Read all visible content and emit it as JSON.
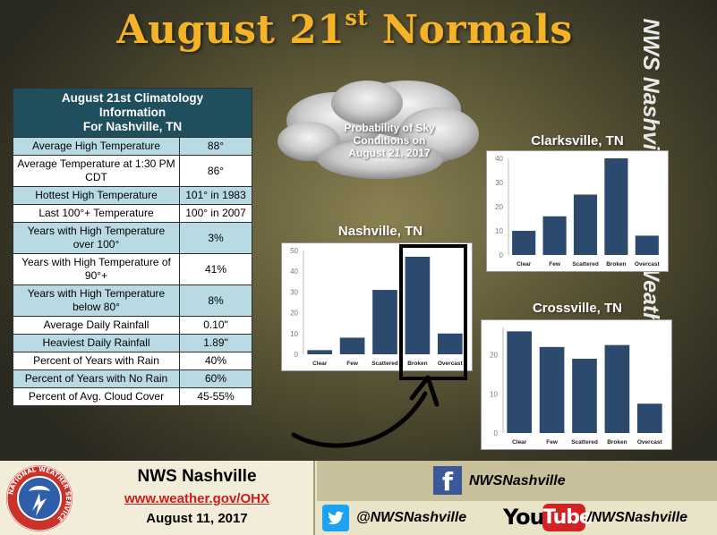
{
  "header": {
    "title_main": "August 21",
    "title_sup": "st",
    "title_tail": " Normals",
    "side_banner": "NWS Nashville Impact Weather Briefing"
  },
  "table": {
    "header_lines": [
      "August 21st Climatology",
      "Information",
      "For Nashville, TN"
    ],
    "rows": [
      {
        "label": "Average High Temperature",
        "value": "88°"
      },
      {
        "label": "Average Temperature at 1:30 PM CDT",
        "value": "86°"
      },
      {
        "label": "Hottest High Temperature",
        "value": "101° in 1983"
      },
      {
        "label": "Last 100°+ Temperature",
        "value": "100° in 2007"
      },
      {
        "label": "Years with High Temperature over 100°",
        "value": "3%"
      },
      {
        "label": "Years with High Temperature of 90°+",
        "value": "41%"
      },
      {
        "label": "Years with High Temperature below 80°",
        "value": "8%"
      },
      {
        "label": "Average Daily Rainfall",
        "value": "0.10\""
      },
      {
        "label": "Heaviest Daily Rainfall",
        "value": "1.89\""
      },
      {
        "label": "Percent of Years with Rain",
        "value": "40%"
      },
      {
        "label": "Percent of Years with No Rain",
        "value": "60%"
      },
      {
        "label": "Percent of Avg. Cloud Cover",
        "value": "45-55%"
      }
    ]
  },
  "cloud_caption": [
    "Probability of Sky",
    "Conditions on",
    "August 21, 2017"
  ],
  "chart_data": [
    {
      "type": "bar",
      "title": "Nashville, TN",
      "categories": [
        "Clear",
        "Few",
        "Scattered",
        "Broken",
        "Overcast"
      ],
      "values": [
        2,
        8,
        31,
        47,
        10
      ],
      "ylim": [
        0,
        50
      ],
      "yticks": [
        0,
        10,
        20,
        30,
        40,
        50
      ],
      "color": "#2c4a6e",
      "grid": false
    },
    {
      "type": "bar",
      "title": "Clarksville, TN",
      "categories": [
        "Clear",
        "Few",
        "Scattered",
        "Broken",
        "Overcast"
      ],
      "values": [
        10,
        16,
        25,
        40,
        8
      ],
      "ylim": [
        0,
        40
      ],
      "yticks": [
        0,
        10,
        20,
        30,
        40
      ],
      "color": "#2c4a6e",
      "grid": false
    },
    {
      "type": "bar",
      "title": "Crossville, TN",
      "categories": [
        "Clear",
        "Few",
        "Scattered",
        "Broken",
        "Overcast"
      ],
      "values": [
        26,
        22,
        19,
        22.5,
        7.5
      ],
      "ylim": [
        0,
        27
      ],
      "yticks": [
        0,
        10,
        20
      ],
      "color": "#2c4a6e",
      "grid": false
    }
  ],
  "footer": {
    "org_name": "NWS Nashville",
    "url": "www.weather.gov/OHX",
    "date": "August 11, 2017",
    "facebook": "NWSNashville",
    "twitter": "@NWSNashville",
    "youtube_you": "You",
    "youtube_tube": "Tube",
    "youtube": "/NWSNashville",
    "logo_text": "NATIONAL WEATHER SERVICE"
  }
}
